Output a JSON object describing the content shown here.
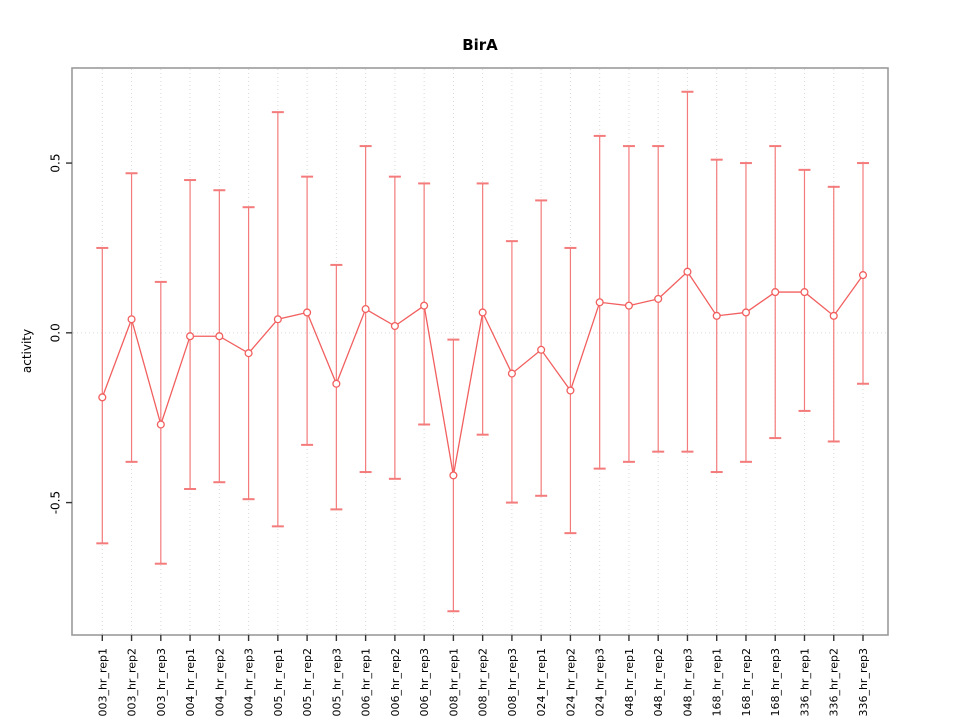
{
  "chart_data": {
    "type": "line",
    "title": "BirA",
    "ylabel": "activity",
    "xlabel": "",
    "legend_position": "none",
    "grid": "dotted vertical line at every category; dotted horizontal line at y=0",
    "ylim": [
      -0.89,
      0.78
    ],
    "yticks": {
      "values": [
        -0.5,
        0.0,
        0.5
      ],
      "labels": [
        "-0.5",
        "0.0",
        "0.5"
      ]
    },
    "categories": [
      "003_hr_rep1",
      "003_hr_rep2",
      "003_hr_rep3",
      "004_hr_rep1",
      "004_hr_rep2",
      "004_hr_rep3",
      "005_hr_rep1",
      "005_hr_rep2",
      "005_hr_rep3",
      "006_hr_rep1",
      "006_hr_rep2",
      "006_hr_rep3",
      "008_hr_rep1",
      "008_hr_rep2",
      "008_hr_rep3",
      "024_hr_rep1",
      "024_hr_rep2",
      "024_hr_rep3",
      "048_hr_rep1",
      "048_hr_rep2",
      "048_hr_rep3",
      "168_hr_rep1",
      "168_hr_rep2",
      "168_hr_rep3",
      "336_hr_rep1",
      "336_hr_rep2",
      "336_hr_rep3"
    ],
    "series": [
      {
        "name": "activity",
        "marker": "open-circle",
        "values": [
          -0.19,
          0.04,
          -0.27,
          -0.01,
          -0.01,
          -0.06,
          0.04,
          0.06,
          -0.15,
          0.07,
          0.02,
          0.08,
          -0.42,
          0.06,
          -0.12,
          -0.05,
          -0.17,
          0.09,
          0.08,
          0.1,
          0.18,
          0.05,
          0.06,
          0.12,
          0.12,
          0.05,
          0.17
        ],
        "error_upper": [
          0.25,
          0.47,
          0.15,
          0.45,
          0.42,
          0.37,
          0.65,
          0.46,
          0.2,
          0.55,
          0.46,
          0.44,
          -0.02,
          0.44,
          0.27,
          0.39,
          0.25,
          0.58,
          0.55,
          0.55,
          0.71,
          0.51,
          0.5,
          0.55,
          0.48,
          0.43,
          0.5
        ],
        "error_lower": [
          -0.62,
          -0.38,
          -0.68,
          -0.46,
          -0.44,
          -0.49,
          -0.57,
          -0.33,
          -0.52,
          -0.41,
          -0.43,
          -0.27,
          -0.82,
          -0.3,
          -0.5,
          -0.48,
          -0.59,
          -0.4,
          -0.38,
          -0.35,
          -0.35,
          -0.41,
          -0.38,
          -0.31,
          -0.23,
          -0.32,
          -0.15
        ]
      }
    ],
    "colors": {
      "series": "#F25F5F",
      "error_bar": "#F47B7B",
      "marker_fill": "#FFFFFF",
      "grid": "#D9D9D9",
      "frame": "#9B9B9B",
      "tick": "#333333",
      "text": "#000000",
      "background": "#FFFFFF"
    }
  }
}
